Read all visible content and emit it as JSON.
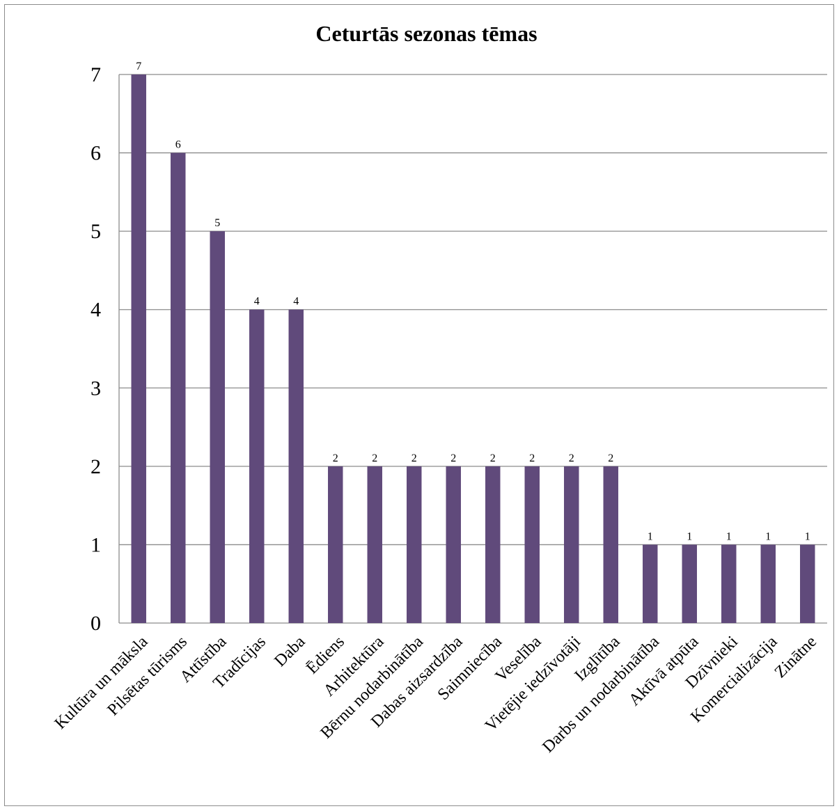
{
  "chart_data": {
    "type": "bar",
    "title": "Ceturtās sezonas tēmas",
    "xlabel": "",
    "ylabel": "",
    "ylim": [
      0,
      7
    ],
    "yticks": [
      0,
      1,
      2,
      3,
      4,
      5,
      6,
      7
    ],
    "grid": true,
    "legend": "none",
    "bar_color": "#604a7b",
    "categories": [
      "Kultūra un māksla",
      "Pilsētas tūrisms",
      "Attīstība",
      "Tradīcijas",
      "Daba",
      "Ēdiens",
      "Arhitektūra",
      "Bērnu nodarbinātība",
      "Dabas aizsardzība",
      "Saimniecība",
      "Veselība",
      "Vietējie iedzīvotāji",
      "Izglītība",
      "Darbs un nodarbinātība",
      "Aktīvā atpūta",
      "Dzīvnieki",
      "Komercializācija",
      "Zinātne"
    ],
    "values": [
      7,
      6,
      5,
      4,
      4,
      2,
      2,
      2,
      2,
      2,
      2,
      2,
      2,
      1,
      1,
      1,
      1,
      1
    ]
  }
}
